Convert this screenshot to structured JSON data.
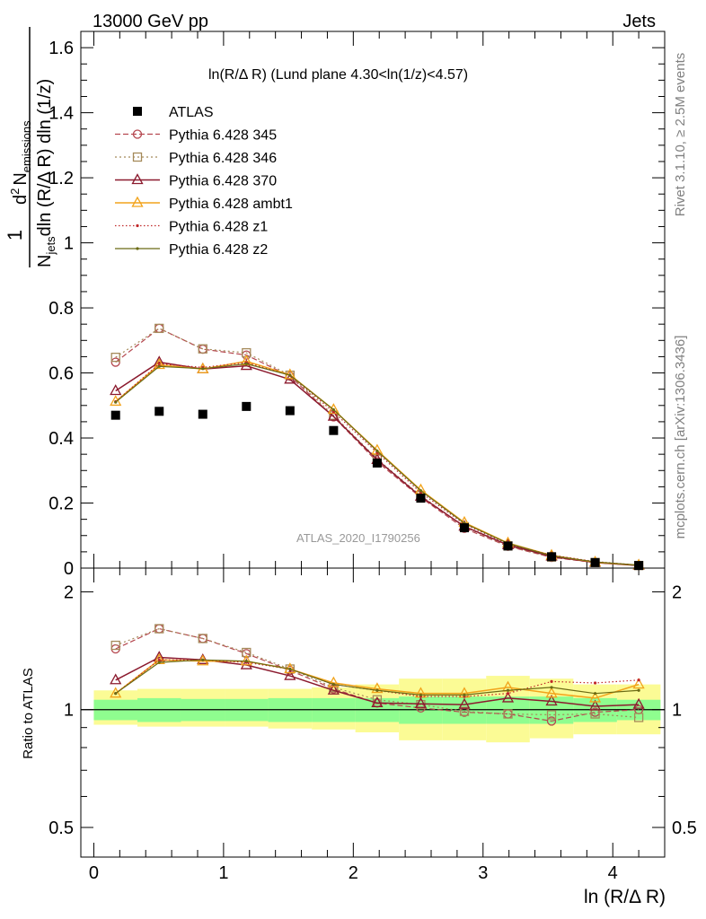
{
  "header": {
    "left": "13000 GeV pp",
    "right": "Jets"
  },
  "plot_title": "ln(R/Δ R) (Lund plane 4.30<ln(1/z)<4.57)",
  "watermark": "ATLAS_2020_I1790256",
  "side_labels": {
    "rivet": "Rivet 3.1.10, ≥ 2.5M events",
    "mcplots": "mcplots.cern.ch [arXiv:1306.3436]"
  },
  "ylabel_main": {
    "one": "1",
    "denominator_left": "N",
    "denominator_sub": "jets",
    "denominator_right": "dln (R/Δ R) dln (1/z)",
    "numerator_left": "d",
    "numerator_sup": "2",
    "numerator_right": "N",
    "numerator_sub": "emissions"
  },
  "ylabel_ratio": "Ratio to ATLAS",
  "xlabel": "ln (R/Δ R)",
  "colors": {
    "data": "#000000",
    "p345": "#b5474f",
    "p346": "#a58a5a",
    "p370": "#8b1a2e",
    "ambt1": "#f2a31b",
    "z1": "#c0282a",
    "z2": "#6b6b14",
    "band_inner": "#8ffd8f",
    "band_outer": "#fbfb95"
  },
  "chart_data": [
    {
      "type": "line",
      "panel": "main",
      "ylim": [
        0,
        1.65
      ],
      "xlim": [
        -0.1,
        4.4
      ],
      "y_ticks": [
        "0",
        "0.2",
        "0.4",
        "0.6",
        "0.8",
        "1",
        "1.2",
        "1.4",
        "1.6"
      ],
      "x": [
        0.168,
        0.504,
        0.84,
        1.176,
        1.512,
        1.848,
        2.184,
        2.52,
        2.856,
        3.192,
        3.528,
        3.864,
        4.2
      ],
      "data_series": {
        "name": "ATLAS",
        "values": [
          0.47,
          0.482,
          0.473,
          0.497,
          0.484,
          0.423,
          0.323,
          0.215,
          0.124,
          0.068,
          0.035,
          0.017,
          0.008
        ]
      },
      "series": [
        {
          "name": "Pythia 6.428 345",
          "key": "p345",
          "values": [
            0.633,
            0.737,
            0.673,
            0.655,
            0.59,
            0.465,
            0.327,
            0.217,
            0.122,
            0.067,
            0.033,
            0.017,
            0.008
          ]
        },
        {
          "name": "Pythia 6.428 346",
          "key": "p346",
          "values": [
            0.648,
            0.737,
            0.674,
            0.662,
            0.593,
            0.47,
            0.335,
            0.223,
            0.127,
            0.068,
            0.034,
            0.017,
            0.008
          ]
        },
        {
          "name": "Pythia 6.428 370",
          "key": "p370",
          "values": [
            0.545,
            0.633,
            0.612,
            0.622,
            0.58,
            0.466,
            0.333,
            0.22,
            0.128,
            0.071,
            0.036,
            0.017,
            0.008
          ]
        },
        {
          "name": "Pythia 6.428 ambt1",
          "key": "ambt1",
          "values": [
            0.512,
            0.625,
            0.612,
            0.636,
            0.594,
            0.487,
            0.362,
            0.24,
            0.14,
            0.077,
            0.039,
            0.018,
            0.009
          ]
        },
        {
          "name": "Pythia 6.428 z1",
          "key": "z1",
          "values": [
            0.512,
            0.628,
            0.617,
            0.632,
            0.593,
            0.48,
            0.355,
            0.232,
            0.135,
            0.074,
            0.04,
            0.02,
            0.009
          ]
        },
        {
          "name": "Pythia 6.428 z2",
          "key": "z2",
          "values": [
            0.51,
            0.62,
            0.613,
            0.628,
            0.593,
            0.487,
            0.36,
            0.238,
            0.138,
            0.076,
            0.038,
            0.019,
            0.009
          ]
        }
      ]
    },
    {
      "type": "line",
      "panel": "ratio",
      "ylabel": "Ratio to ATLAS",
      "ylim": [
        0.42,
        2.3
      ],
      "xlim": [
        -0.1,
        4.4
      ],
      "y_ticks": [
        "0.5",
        "1",
        "2"
      ],
      "x_ticks": [
        "0",
        "1",
        "2",
        "3",
        "4"
      ],
      "xlabel": "ln (R/Δ R)",
      "bin_edges": [
        0.0,
        0.336,
        0.672,
        1.008,
        1.344,
        1.68,
        2.016,
        2.352,
        2.688,
        3.024,
        3.36,
        3.696,
        4.032,
        4.368
      ],
      "band_inner": [
        [
          0.94,
          1.06
        ],
        [
          0.93,
          1.07
        ],
        [
          0.935,
          1.065
        ],
        [
          0.935,
          1.065
        ],
        [
          0.93,
          1.07
        ],
        [
          0.93,
          1.07
        ],
        [
          0.93,
          1.07
        ],
        [
          0.92,
          1.08
        ],
        [
          0.92,
          1.08
        ],
        [
          0.92,
          1.08
        ],
        [
          0.92,
          1.08
        ],
        [
          0.93,
          1.07
        ],
        [
          0.94,
          1.06
        ]
      ],
      "band_outer": [
        [
          0.915,
          1.12
        ],
        [
          0.905,
          1.13
        ],
        [
          0.905,
          1.13
        ],
        [
          0.905,
          1.13
        ],
        [
          0.895,
          1.13
        ],
        [
          0.89,
          1.14
        ],
        [
          0.875,
          1.16
        ],
        [
          0.835,
          1.2
        ],
        [
          0.835,
          1.2
        ],
        [
          0.825,
          1.22
        ],
        [
          0.845,
          1.2
        ],
        [
          0.865,
          1.16
        ],
        [
          0.865,
          1.16
        ]
      ],
      "series": [
        {
          "name": "Pythia 6.428 345",
          "key": "p345",
          "values": [
            1.43,
            1.61,
            1.52,
            1.39,
            1.26,
            1.13,
            1.04,
            1.01,
            0.985,
            0.975,
            0.935,
            0.985,
            1.0
          ]
        },
        {
          "name": "Pythia 6.428 346",
          "key": "p346",
          "values": [
            1.46,
            1.61,
            1.52,
            1.4,
            1.27,
            1.14,
            1.06,
            1.03,
            0.99,
            0.975,
            0.97,
            0.975,
            0.955
          ]
        },
        {
          "name": "Pythia 6.428 370",
          "key": "p370",
          "values": [
            1.19,
            1.36,
            1.34,
            1.3,
            1.22,
            1.12,
            1.04,
            1.035,
            1.03,
            1.07,
            1.05,
            1.02,
            1.03
          ]
        },
        {
          "name": "Pythia 6.428 ambt1",
          "key": "ambt1",
          "values": [
            1.1,
            1.34,
            1.33,
            1.33,
            1.27,
            1.17,
            1.13,
            1.1,
            1.1,
            1.14,
            1.1,
            1.07,
            1.16
          ]
        },
        {
          "name": "Pythia 6.428 z1",
          "key": "z1",
          "values": [
            1.1,
            1.34,
            1.34,
            1.32,
            1.27,
            1.16,
            1.12,
            1.08,
            1.08,
            1.1,
            1.18,
            1.17,
            1.19
          ]
        },
        {
          "name": "Pythia 6.428 z2",
          "key": "z2",
          "values": [
            1.1,
            1.32,
            1.34,
            1.33,
            1.27,
            1.16,
            1.12,
            1.09,
            1.09,
            1.12,
            1.14,
            1.1,
            1.12
          ]
        }
      ]
    }
  ]
}
